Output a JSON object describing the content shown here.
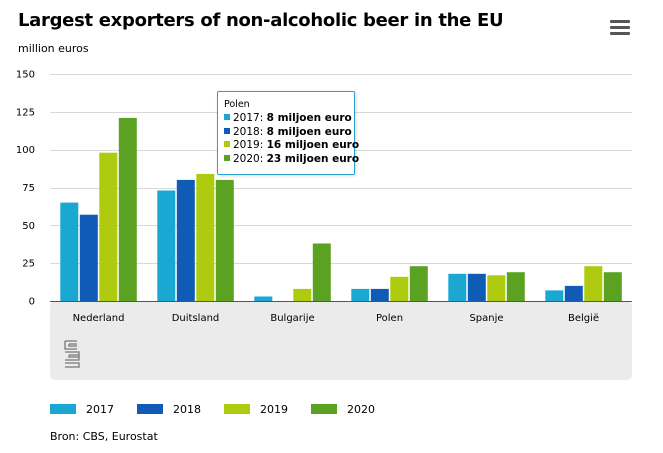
{
  "title": "Largest exporters of non-alcoholic beer in the EU",
  "subtitle": "million euros",
  "menu_icon": "hamburger-menu-icon",
  "source": "Bron: CBS, Eurostat",
  "logo_icon": "cbs-logo-icon",
  "colors": {
    "2017": "#1aa8d3",
    "2018": "#0f5bb5",
    "2019": "#aecb0f",
    "2020": "#5ba223",
    "panel": "#ebebeb"
  },
  "tooltip": {
    "header": "Polen",
    "rows": [
      {
        "label": "2017: ",
        "value": "8 miljoen euro"
      },
      {
        "label": "2018: ",
        "value": "8 miljoen euro"
      },
      {
        "label": "2019: ",
        "value": "16 miljoen euro"
      },
      {
        "label": "2020: ",
        "value": "23 miljoen euro"
      }
    ]
  },
  "chart_data": {
    "type": "bar",
    "title": "Largest exporters of non-alcoholic beer in the EU",
    "ylabel": "million euros",
    "xlabel": "",
    "ylim": [
      0,
      150
    ],
    "yticks": [
      "0",
      "25",
      "50",
      "75",
      "100",
      "125",
      "150"
    ],
    "grid": true,
    "legend_position": "bottom",
    "categories": [
      "Nederland",
      "Duitsland",
      "Bulgarije",
      "Polen",
      "Spanje",
      "België"
    ],
    "series": [
      {
        "name": "2017",
        "values": [
          65,
          73,
          3,
          8,
          18,
          7
        ]
      },
      {
        "name": "2018",
        "values": [
          57,
          80,
          0,
          8,
          18,
          10
        ]
      },
      {
        "name": "2019",
        "values": [
          98,
          84,
          8,
          16,
          17,
          23
        ]
      },
      {
        "name": "2020",
        "values": [
          121,
          80,
          38,
          23,
          19,
          19
        ]
      }
    ]
  }
}
